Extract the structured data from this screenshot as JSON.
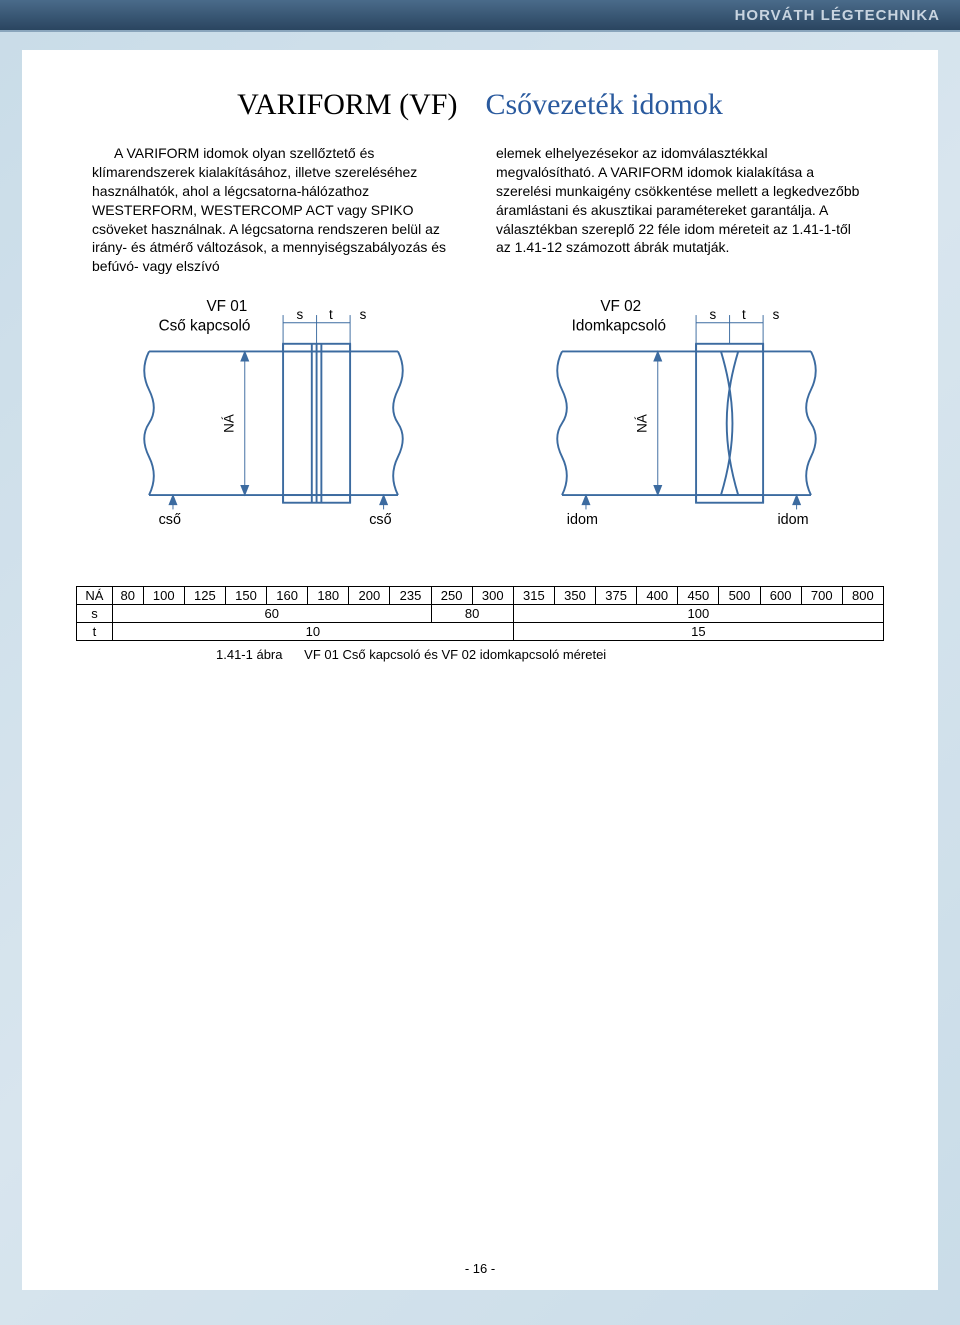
{
  "header": {
    "brand": "HORVÁTH LÉGTECHNIKA"
  },
  "title": {
    "left": "VARIFORM (VF)",
    "right": "Csővezeték idomok"
  },
  "paragraphs": {
    "left": "A VARIFORM idomok olyan szellőztető és klímarendszerek kialakításához, illetve szereléséhez használhatók, ahol a légcsatorna-hálózathoz WESTERFORM, WESTERCOMP ACT vagy SPIKO csöveket használnak. A légcsatorna rendszeren belül az irány- és átmérő változások, a mennyiségszabályozás és befúvó- vagy elszívó",
    "right": "elemek elhelyezésekor az idomválasztékkal megvalósítható. A VARIFORM idomok kialakítása a szerelési munkaigény csökkentése mellett a legkedvezőbb áramlástani és akusztikai paramétereket garantálja. A választékban szereplő 22 féle idom méreteit az 1.41-1-től az 1.41-12 számozott ábrák mutatják."
  },
  "diagrams": {
    "left": {
      "code": "VF 01",
      "name": "Cső kapcsoló",
      "dim_s": "s",
      "dim_t": "t",
      "side_label": "cső",
      "na_label": "NÁ",
      "stroke": "#3c6ba0"
    },
    "right": {
      "code": "VF 02",
      "name": "Idomkapcsoló",
      "dim_s": "s",
      "dim_t": "t",
      "side_label": "idom",
      "na_label": "NÁ",
      "stroke": "#3c6ba0"
    }
  },
  "table": {
    "header_row": [
      "NÁ",
      "80",
      "100",
      "125",
      "150",
      "160",
      "180",
      "200",
      "235",
      "250",
      "300",
      "315",
      "350",
      "375",
      "400",
      "450",
      "500",
      "600",
      "700",
      "800"
    ],
    "rows": [
      {
        "label": "s",
        "spans": [
          {
            "colspan": 8,
            "value": "60"
          },
          {
            "colspan": 2,
            "value": "80"
          },
          {
            "colspan": 9,
            "value": "100"
          }
        ]
      },
      {
        "label": "t",
        "spans": [
          {
            "colspan": 10,
            "value": "10"
          },
          {
            "colspan": 9,
            "value": "15"
          }
        ]
      }
    ]
  },
  "caption": {
    "ref": "1.41-1 ábra",
    "text": "VF 01 Cső kapcsoló és VF 02 idomkapcsoló méretei"
  },
  "page_number": "- 16 -"
}
